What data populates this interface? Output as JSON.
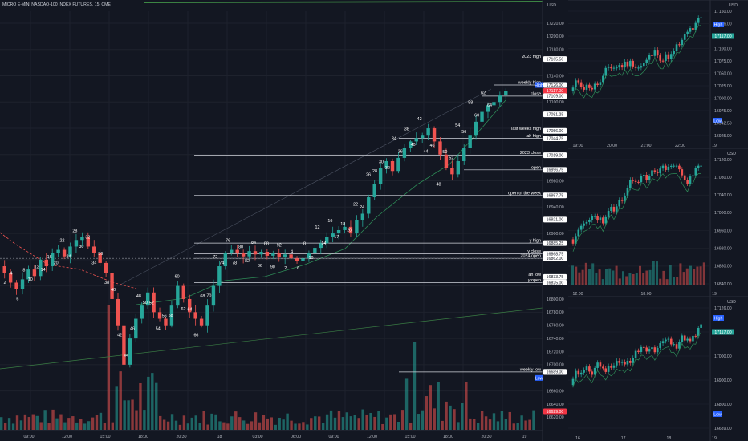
{
  "colors": {
    "bg": "#131722",
    "up": "#26a69a",
    "down": "#ef5350",
    "grid": "#1e222d",
    "levels": "#d1d4dc",
    "last_price": "#f23645",
    "ma": "#2e8b57",
    "trend": "#3a7d44"
  },
  "main": {
    "symbol_title": "MICRO E-MINI NASDAQ-100 INDEX FUTURES, 15, CME",
    "currency": "USD",
    "price_ticks": [
      "17220.00",
      "17200.00",
      "17180.00",
      "17165.50",
      "17140.00",
      "17126.00",
      "17126.00",
      "17117.00",
      "17109.00",
      "17100.00",
      "17081.25",
      "17056.00",
      "17044.75",
      "17019.00",
      "16996.75",
      "16980.00",
      "16957.75",
      "16940.00",
      "16921.00",
      "16900.00",
      "16885.25",
      "16868.75",
      "16862.00",
      "16833.75",
      "16825.00",
      "16800.00",
      "16780.00",
      "16760.00",
      "16740.00",
      "16720.00",
      "16700.00",
      "16689.00",
      "16689.00",
      "16660.00",
      "16640.00",
      "16629.00",
      "16620.00"
    ],
    "time_ticks": [
      "09:00",
      "12:00",
      "15:00",
      "18:00",
      "20:30",
      "18",
      "03:00",
      "06:00",
      "09:00",
      "12:00",
      "15:00",
      "18:00",
      "20:30",
      "19"
    ],
    "level_labels": [
      "2023 high",
      "High",
      "weekly high",
      "close",
      "last weeks high",
      "ah high",
      "2023 close",
      "open",
      "open of the week",
      "y high",
      "y close",
      "2024 open",
      "ah low",
      "y open",
      "weekly low",
      "Low"
    ],
    "wave_labels": [
      "2",
      "4",
      "6",
      "8",
      "10",
      "12",
      "14",
      "16",
      "20",
      "22",
      "24",
      "28",
      "30",
      "32",
      "34",
      "36",
      "38",
      "40",
      "42",
      "44",
      "46",
      "48",
      "50",
      "52",
      "54",
      "56",
      "58",
      "60",
      "62",
      "64",
      "66",
      "68",
      "70",
      "72",
      "74",
      "76",
      "78",
      "80",
      "82",
      "84",
      "86",
      "88",
      "90",
      "92",
      "2",
      "4",
      "6",
      "8",
      "10",
      "12",
      "14",
      "16",
      "17",
      "18",
      "20",
      "22",
      "24",
      "26",
      "28",
      "30",
      "32",
      "34",
      "36",
      "38",
      "40",
      "42",
      "44",
      "46",
      "48",
      "50",
      "52",
      "54",
      "56",
      "58",
      "60",
      "62",
      "64"
    ]
  },
  "panel_top": {
    "price_ticks": [
      "17150.00",
      "17126.00",
      "17117.00",
      "17100.00",
      "17075.00",
      "17050.00",
      "17025.00",
      "17000.00",
      "16975.00",
      "16942.50",
      "16925.00"
    ],
    "time_ticks": [
      "19:00",
      "20:00",
      "21:00",
      "22:00",
      "19"
    ],
    "labels": [
      "High",
      "Low"
    ],
    "currency": "USD"
  },
  "panel_mid": {
    "price_ticks": [
      "17120.00",
      "17080.00",
      "17040.00",
      "17000.00",
      "16960.00",
      "16920.00",
      "16880.00",
      "16840.00"
    ],
    "time_ticks": [
      "12:00",
      "18:00",
      "19"
    ],
    "currency": "USD"
  },
  "panel_bot": {
    "price_ticks": [
      "17126.00",
      "17117.00",
      "17000.00",
      "16900.00",
      "16800.00",
      "16689.00"
    ],
    "time_ticks": [
      "16",
      "17",
      "18",
      "19"
    ],
    "labels": [
      "High",
      "Low"
    ],
    "currency": "USD"
  },
  "chart_data": {
    "type": "candlestick",
    "title": "MICRO E-MINI NASDAQ-100 INDEX FUTURES, 15, CME",
    "ylabel": "USD",
    "ylim": [
      16620,
      17230
    ],
    "x_ticks": [
      "09:00",
      "12:00",
      "15:00",
      "18:00",
      "20:30",
      "18",
      "03:00",
      "06:00",
      "09:00",
      "12:00",
      "15:00",
      "18:00",
      "20:30",
      "19"
    ],
    "levels": [
      {
        "name": "2023 high",
        "value": 17165.5
      },
      {
        "name": "weekly high",
        "value": 17126.0
      },
      {
        "name": "close",
        "value": 17109.0
      },
      {
        "name": "last weeks high",
        "value": 17056.0
      },
      {
        "name": "ah high",
        "value": 17044.75
      },
      {
        "name": "2023 close",
        "value": 17019.0
      },
      {
        "name": "open",
        "value": 16996.75
      },
      {
        "name": "open of the week",
        "value": 16957.75
      },
      {
        "name": "y high",
        "value": 16885.25
      },
      {
        "name": "y close",
        "value": 16868.75
      },
      {
        "name": "2024 open",
        "value": 16862.0
      },
      {
        "name": "ah low",
        "value": 16833.75
      },
      {
        "name": "y open",
        "value": 16825.0
      },
      {
        "name": "weekly low",
        "value": 16689.0
      }
    ],
    "last_price": 17117.0,
    "high": 17126.0,
    "low": 16689.0,
    "closes": [
      16840,
      16825,
      16815,
      16830,
      16845,
      16835,
      16860,
      16850,
      16870,
      16875,
      16865,
      16880,
      16890,
      16895,
      16880,
      16870,
      16855,
      16840,
      16800,
      16760,
      16700,
      16740,
      16770,
      16790,
      16810,
      16780,
      16770,
      16760,
      16790,
      16820,
      16800,
      16780,
      16770,
      16760,
      16790,
      16820,
      16850,
      16870,
      16875,
      16870,
      16865,
      16873,
      16868,
      16872,
      16866,
      16870,
      16864,
      16868,
      16862,
      16858,
      16862,
      16870,
      16878,
      16885,
      16895,
      16900,
      16905,
      16910,
      16900,
      16920,
      16930,
      16955,
      16975,
      17000,
      17010,
      16995,
      17015,
      17030,
      17040,
      17045,
      17050,
      17060,
      17040,
      17020,
      17000,
      16990,
      17010,
      17030,
      17050,
      17070,
      17085,
      17095,
      17100,
      17110,
      17117
    ]
  }
}
